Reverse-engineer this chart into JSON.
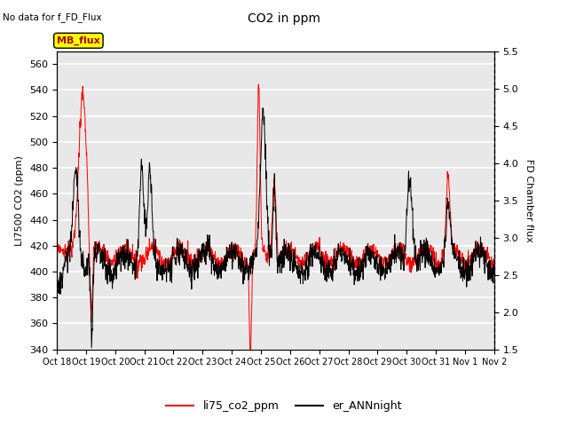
{
  "title": "CO2 in ppm",
  "top_left_text": "No data for f_FD_Flux",
  "ylabel_left": "LI7500 CO2 (ppm)",
  "ylabel_right": "FD Chamber flux",
  "ylim_left": [
    340,
    570
  ],
  "ylim_right": [
    1.5,
    5.5
  ],
  "yticks_left": [
    340,
    360,
    380,
    400,
    420,
    440,
    460,
    480,
    500,
    520,
    540,
    560
  ],
  "yticks_right": [
    1.5,
    2.0,
    2.5,
    3.0,
    3.5,
    4.0,
    4.5,
    5.0,
    5.5
  ],
  "xlabel_ticks": [
    "Oct 18",
    "Oct 19",
    "Oct 20",
    "Oct 21",
    "Oct 22",
    "Oct 23",
    "Oct 24",
    "Oct 25",
    "Oct 26",
    "Oct 27",
    "Oct 28",
    "Oct 29",
    "Oct 30",
    "Oct 31",
    "Nov 1",
    "Nov 2"
  ],
  "legend_entries": [
    "li75_co2_ppm",
    "er_ANNnight"
  ],
  "legend_colors": [
    "red",
    "black"
  ],
  "mb_flux_box_color": "#ffff00",
  "mb_flux_text_color": "#aa0000",
  "background_color": "#e8e8e8",
  "grid_color": "white",
  "line_color_red": "#ff0000",
  "line_color_black": "#000000",
  "n_days": 16
}
